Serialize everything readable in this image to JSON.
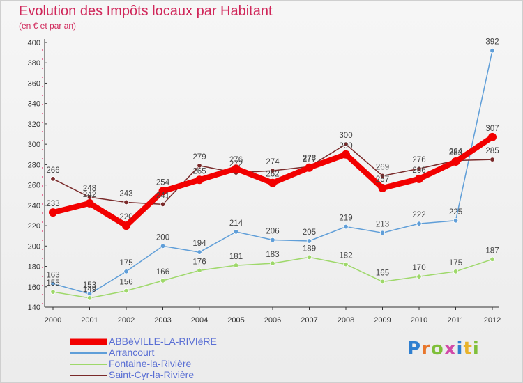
{
  "header": {
    "title": "Evolution des Impôts locaux par Habitant",
    "subtitle": "(en € et par an)"
  },
  "logo": {
    "letters": [
      "P",
      "r",
      "o",
      "x",
      "i",
      "t",
      "i"
    ],
    "colors": [
      "#2f7fd0",
      "#e8762b",
      "#7fbf3a",
      "#d24aa8",
      "#2f7fd0",
      "#e8b22b",
      "#7fbf3a"
    ]
  },
  "chart_data": {
    "type": "line",
    "x": [
      "2000",
      "2001",
      "2002",
      "2003",
      "2004",
      "2005",
      "2006",
      "2007",
      "2008",
      "2009",
      "2010",
      "2011",
      "2012"
    ],
    "ylim": [
      140,
      400
    ],
    "yticks": [
      "140",
      "160",
      "180",
      "200",
      "220",
      "240",
      "260",
      "280",
      "300",
      "320",
      "340",
      "360",
      "380",
      "400"
    ],
    "grid": false,
    "legend_position": "bottom-left",
    "series": [
      {
        "name": "ABBéVILLE-LA-RIVIèRE",
        "color": "#f20000",
        "values": [
          233,
          242,
          220,
          254,
          265,
          276,
          262,
          277,
          290,
          257,
          266,
          283,
          307
        ],
        "labels": [
          "233",
          "242",
          "220",
          "254",
          "265",
          "276",
          "262",
          "277",
          "290",
          "257",
          "266",
          "283",
          "307"
        ]
      },
      {
        "name": "Arrancourt",
        "color": "#5f9ed8",
        "values": [
          163,
          153,
          175,
          200,
          194,
          214,
          206,
          205,
          219,
          213,
          222,
          225,
          392
        ],
        "labels": [
          "163",
          "153",
          "175",
          "200",
          "194",
          "214",
          "206",
          "205",
          "219",
          "213",
          "222",
          "225",
          "392"
        ]
      },
      {
        "name": "Fontaine-la-Rivière",
        "color": "#9ed86a",
        "values": [
          155,
          149,
          156,
          166,
          176,
          181,
          183,
          189,
          182,
          165,
          170,
          175,
          187
        ],
        "labels": [
          "155",
          "149",
          "156",
          "166",
          "176",
          "181",
          "183",
          "189",
          "182",
          "165",
          "170",
          "175",
          "187"
        ]
      },
      {
        "name": "Saint-Cyr-la-Rivière",
        "color": "#7a2a2a",
        "values": [
          266,
          248,
          243,
          241,
          279,
          272,
          274,
          278,
          300,
          269,
          276,
          284,
          285
        ],
        "labels": [
          "266",
          "248",
          "243",
          "241",
          "279",
          "272",
          "274",
          "278",
          "300",
          "269",
          "276",
          "284",
          "285"
        ]
      }
    ]
  }
}
